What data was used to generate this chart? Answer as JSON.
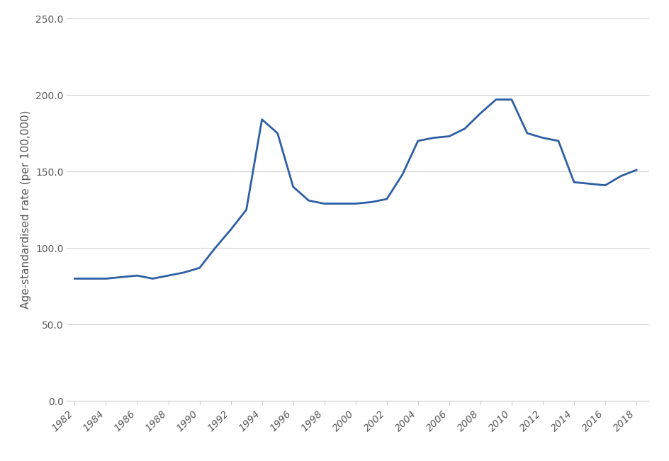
{
  "years": [
    1982,
    1983,
    1984,
    1985,
    1986,
    1987,
    1988,
    1989,
    1990,
    1991,
    1992,
    1993,
    1994,
    1995,
    1996,
    1997,
    1998,
    1999,
    2000,
    2001,
    2002,
    2003,
    2004,
    2005,
    2006,
    2007,
    2008,
    2009,
    2010,
    2011,
    2012,
    2013,
    2014,
    2015,
    2016,
    2017,
    2018
  ],
  "values": [
    80,
    80,
    80,
    81,
    82,
    80,
    82,
    84,
    87,
    100,
    112,
    125,
    184,
    175,
    140,
    131,
    129,
    129,
    129,
    130,
    132,
    148,
    170,
    172,
    173,
    178,
    188,
    197,
    197,
    175,
    172,
    170,
    143,
    142,
    141,
    147,
    151
  ],
  "line_color": "#2e5fa3",
  "line_width": 2.0,
  "ylabel": "Age-standardised rate (per 100,000)",
  "xlabel": "",
  "ylim": [
    0,
    250
  ],
  "yticks": [
    0.0,
    50.0,
    100.0,
    150.0,
    200.0,
    250.0
  ],
  "xtick_every": 2,
  "background_color": "#ffffff",
  "grid_color": "#d0d0d0",
  "tick_label_color": "#595959",
  "ylabel_fontsize": 11,
  "tick_fontsize": 10,
  "xlim_left": 1981.5,
  "xlim_right": 2018.8
}
